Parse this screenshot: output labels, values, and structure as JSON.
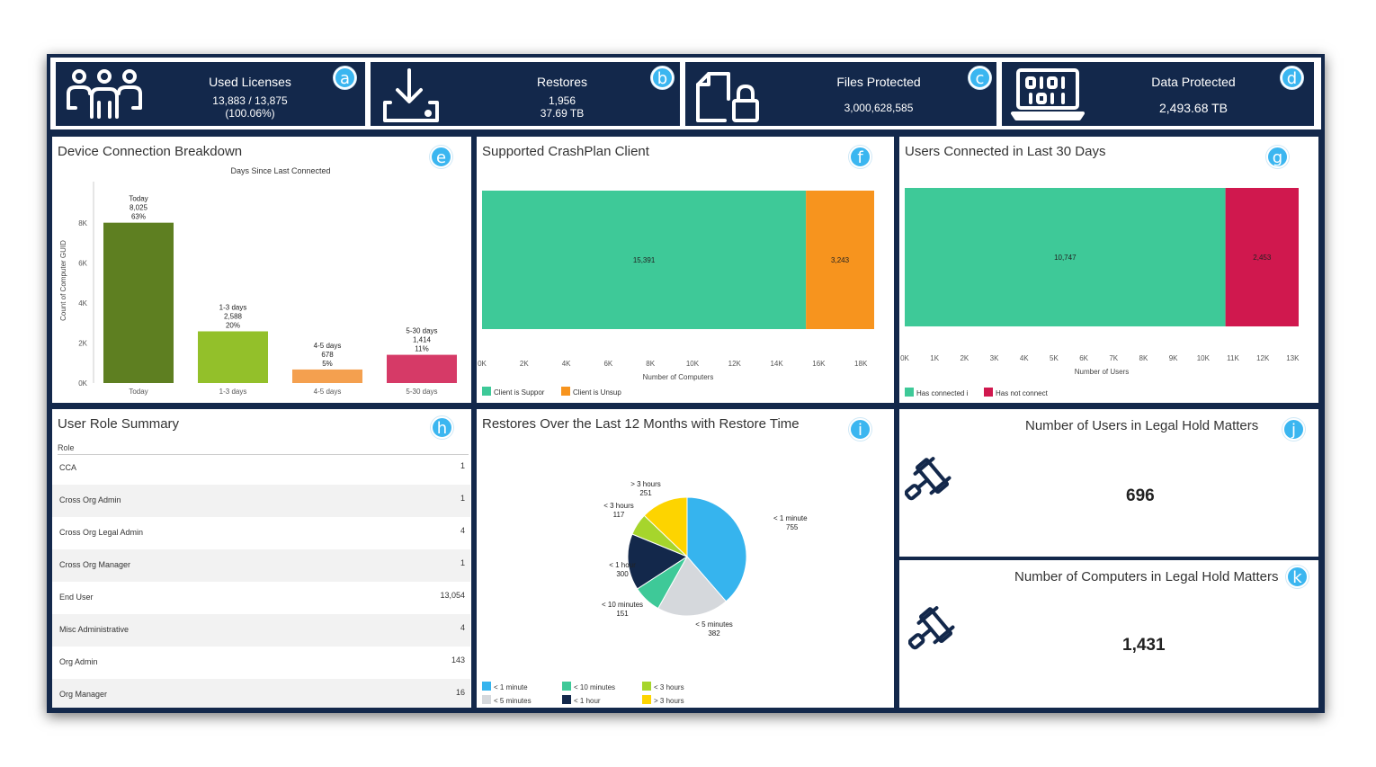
{
  "kpis": [
    {
      "title": "Used Licenses",
      "line1": "13,883 / 13,875",
      "line2": "(100.06%)",
      "badge": "a",
      "icon": "users-icon"
    },
    {
      "title": "Restores",
      "line1": "1,956",
      "line2": "37.69 TB",
      "badge": "b",
      "icon": "download-tray-icon"
    },
    {
      "title": "Files Protected",
      "line1": "3,000,628,585",
      "line2": "",
      "badge": "c",
      "icon": "locked-file-icon"
    },
    {
      "title": "Data Protected",
      "line1": "2,493.68 TB",
      "line2": "",
      "badge": "d",
      "icon": "laptop-binary-icon"
    }
  ],
  "device_breakdown": {
    "title": "Device Connection Breakdown",
    "badge": "e",
    "chart_data": {
      "type": "bar",
      "title": "Days Since Last Connected",
      "ylabel": "Count of Computer GUID",
      "categories": [
        "Today",
        "1-3 days",
        "4-5 days",
        "5-30 days"
      ],
      "values": [
        8025,
        2588,
        678,
        1414
      ],
      "value_labels": [
        "8,025",
        "2,588",
        "678",
        "1,414"
      ],
      "percent_labels": [
        "63%",
        "20%",
        "5%",
        "11%"
      ],
      "colors": [
        "#5e7f21",
        "#93c02a",
        "#f4a04f",
        "#d63a67"
      ],
      "yticks": [
        "0K",
        "2K",
        "4K",
        "6K",
        "8K"
      ],
      "ylim": [
        0,
        9000
      ]
    }
  },
  "crashplan": {
    "title": "Supported CrashPlan Client",
    "badge": "f",
    "chart_data": {
      "type": "bar",
      "orientation": "horizontal-stacked",
      "xlabel": "Number of Computers",
      "series": [
        {
          "name": "Client is Suppor",
          "value": 15391,
          "label": "15,391",
          "color": "#3ec998"
        },
        {
          "name": "Client is Unsup",
          "value": 3243,
          "label": "3,243",
          "color": "#f7941e"
        }
      ],
      "xticks": [
        "0K",
        "2K",
        "4K",
        "6K",
        "8K",
        "10K",
        "12K",
        "14K",
        "16K",
        "18K"
      ],
      "xlim": [
        0,
        18634
      ]
    }
  },
  "users_connected": {
    "title": "Users Connected in Last 30 Days",
    "badge": "g",
    "chart_data": {
      "type": "bar",
      "orientation": "horizontal-stacked",
      "xlabel": "Number of Users",
      "series": [
        {
          "name": "Has connected i",
          "value": 10747,
          "label": "10,747",
          "color": "#3ec998"
        },
        {
          "name": "Has not connect",
          "value": 2453,
          "label": "2,453",
          "color": "#d0184e"
        }
      ],
      "xticks": [
        "0K",
        "1K",
        "2K",
        "3K",
        "4K",
        "5K",
        "6K",
        "7K",
        "8K",
        "9K",
        "10K",
        "11K",
        "12K",
        "13K"
      ],
      "xlim": [
        0,
        13200
      ]
    }
  },
  "user_roles": {
    "title": "User Role Summary",
    "badge": "h",
    "column": "Role",
    "rows": [
      {
        "name": "CCA",
        "value": "1"
      },
      {
        "name": "Cross Org Admin",
        "value": "1"
      },
      {
        "name": "Cross Org Legal Admin",
        "value": "4"
      },
      {
        "name": "Cross Org Manager",
        "value": "1"
      },
      {
        "name": "End User",
        "value": "13,054"
      },
      {
        "name": "Misc Administrative",
        "value": "4"
      },
      {
        "name": "Org Admin",
        "value": "143"
      },
      {
        "name": "Org Manager",
        "value": "16"
      }
    ]
  },
  "restores_pie": {
    "title": "Restores Over the Last 12 Months with Restore Time",
    "badge": "i",
    "chart_data": {
      "type": "pie",
      "slices": [
        {
          "name": "< 1 minute",
          "value": 755,
          "color": "#36b4ee"
        },
        {
          "name": "< 5 minutes",
          "value": 382,
          "color": "#d5d8dc"
        },
        {
          "name": "< 10 minutes",
          "value": 151,
          "color": "#3ec998"
        },
        {
          "name": "< 1 hour",
          "value": 300,
          "color": "#13284b"
        },
        {
          "name": "< 3 hours",
          "value": 117,
          "color": "#a6d52c"
        },
        {
          "name": "> 3 hours",
          "value": 251,
          "color": "#fdd400"
        }
      ]
    }
  },
  "legal_users": {
    "title": "Number of Users in Legal Hold Matters",
    "value": "696",
    "badge": "j"
  },
  "legal_computers": {
    "title": "Number of Computers in Legal Hold Matters",
    "value": "1,431",
    "badge": "k"
  }
}
